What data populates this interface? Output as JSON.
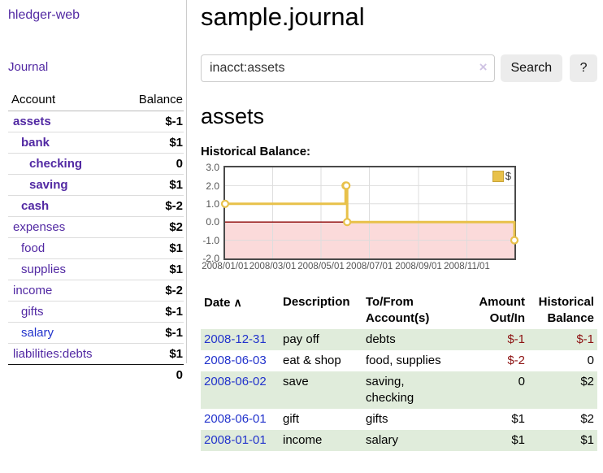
{
  "app": {
    "brand": "hledger-web"
  },
  "nav": {
    "journal": "Journal"
  },
  "sidebar": {
    "header": {
      "account": "Account",
      "balance": "Balance"
    },
    "accounts": [
      {
        "name": "assets",
        "balance": "$-1"
      },
      {
        "name": "bank",
        "balance": "$1"
      },
      {
        "name": "checking",
        "balance": "0"
      },
      {
        "name": "saving",
        "balance": "$1"
      },
      {
        "name": "cash",
        "balance": "$-2"
      },
      {
        "name": "expenses",
        "balance": "$2"
      },
      {
        "name": "food",
        "balance": "$1"
      },
      {
        "name": "supplies",
        "balance": "$1"
      },
      {
        "name": "income",
        "balance": "$-2"
      },
      {
        "name": "gifts",
        "balance": "$-1"
      },
      {
        "name": "salary",
        "balance": "$-1"
      },
      {
        "name": "liabilities:debts",
        "balance": "$1"
      }
    ],
    "total": "0"
  },
  "main": {
    "title": "sample.journal",
    "account_heading": "assets",
    "section_label": "Historical Balance:"
  },
  "search": {
    "value": "inacct:assets",
    "clear_icon": "×",
    "button": "Search",
    "help": "?"
  },
  "chart_data": {
    "type": "line",
    "step": true,
    "title": "Historical Balance",
    "x_range": [
      "2008-01-01",
      "2008-12-31"
    ],
    "ylim": [
      -2,
      3
    ],
    "yticks": [
      {
        "v": 3,
        "label": "3.0"
      },
      {
        "v": 2,
        "label": "2.0"
      },
      {
        "v": 1,
        "label": "1.0"
      },
      {
        "v": 0,
        "label": "0.0"
      },
      {
        "v": -1,
        "label": "-1.0"
      },
      {
        "v": -2,
        "label": "-2.0"
      }
    ],
    "xticks": [
      {
        "date": "2008-01-01",
        "label": "2008/01/01"
      },
      {
        "date": "2008-03-01",
        "label": "2008/03/01"
      },
      {
        "date": "2008-05-01",
        "label": "2008/05/01"
      },
      {
        "date": "2008-07-01",
        "label": "2008/07/01"
      },
      {
        "date": "2008-09-01",
        "label": "2008/09/01"
      },
      {
        "date": "2008-11-01",
        "label": "2008/11/01"
      }
    ],
    "series": [
      {
        "name": "$",
        "color": "#e8c14a",
        "points": [
          {
            "date": "2008-01-01",
            "value": 1
          },
          {
            "date": "2008-06-01",
            "value": 2
          },
          {
            "date": "2008-06-02",
            "value": 2
          },
          {
            "date": "2008-06-03",
            "value": 0
          },
          {
            "date": "2008-12-31",
            "value": -1
          }
        ]
      }
    ],
    "legend": {
      "position": "top-right",
      "items": [
        {
          "label": "$",
          "color": "#e8c14a"
        }
      ]
    },
    "colors": {
      "negative_region": "#fbdada",
      "zero_line": "#8b0000",
      "grid": "#dddddd",
      "border": "#4a4a4a",
      "marker_fill": "#ffffff"
    }
  },
  "register": {
    "headers": {
      "date": "Date",
      "sort": "∧",
      "description": "Description",
      "accounts": "To/From\nAccount(s)",
      "amount": "Amount\nOut/In",
      "balance": "Historical\nBalance"
    },
    "rows": [
      {
        "date": "2008-12-31",
        "description": "pay off",
        "accounts": "debts",
        "amount": "$-1",
        "balance": "$-1"
      },
      {
        "date": "2008-06-03",
        "description": "eat & shop",
        "accounts": "food, supplies",
        "amount": "$-2",
        "balance": "0"
      },
      {
        "date": "2008-06-02",
        "description": "save",
        "accounts": "saving,\nchecking",
        "amount": "0",
        "balance": "$2"
      },
      {
        "date": "2008-06-01",
        "description": "gift",
        "accounts": "gifts",
        "amount": "$1",
        "balance": "$2"
      },
      {
        "date": "2008-01-01",
        "description": "income",
        "accounts": "salary",
        "amount": "$1",
        "balance": "$1"
      }
    ]
  }
}
